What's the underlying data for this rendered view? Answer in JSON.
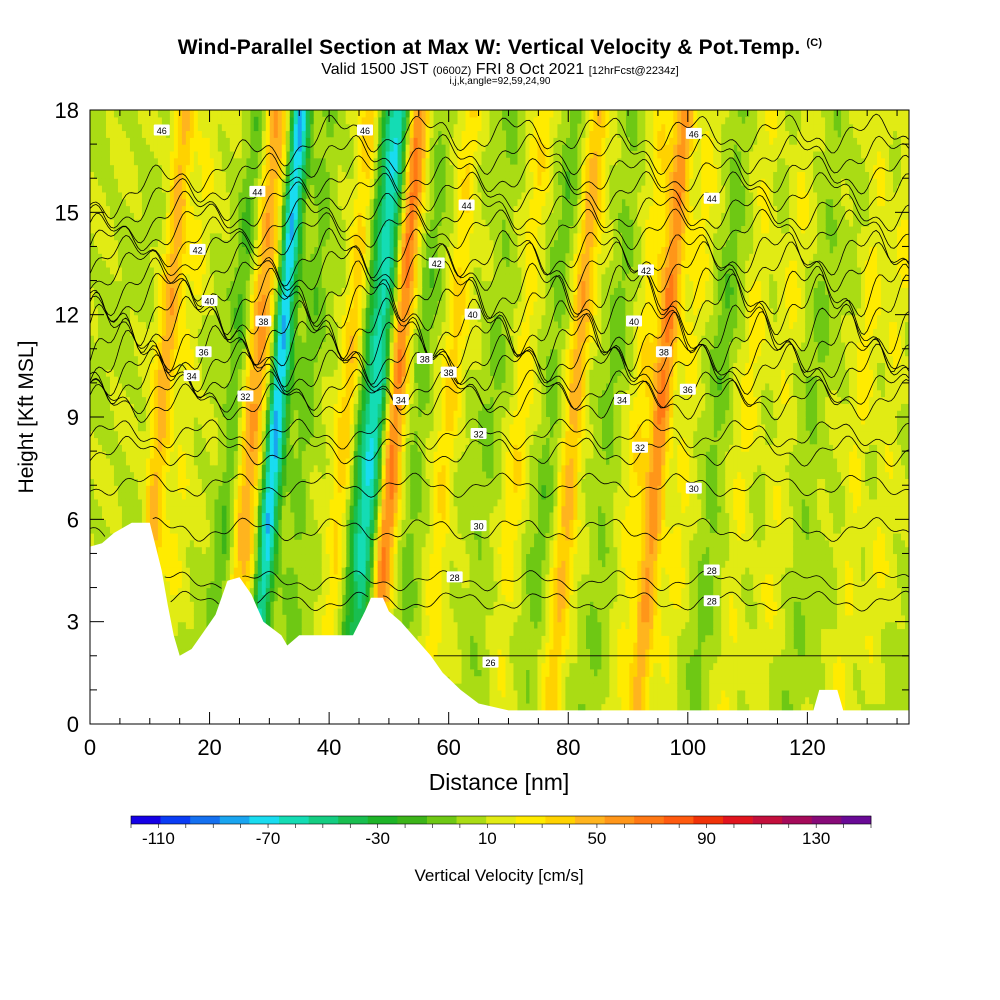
{
  "header": {
    "title": "Wind-Parallel Section at Max W: Vertical Velocity & Pot.Temp.",
    "copyright": "(C)",
    "valid_prefix": "Valid 1500 JST",
    "valid_utc": "(0600Z)",
    "valid_date": "FRI 8 Oct 2021",
    "forecast": "[12hrFcst@2234z]",
    "indices": "i,j,k,angle=92,59,24,90"
  },
  "chart_data": {
    "type": "heatmap",
    "xlabel": "Distance [nm]",
    "ylabel": "Height [Kft MSL]",
    "xlim": [
      0,
      137
    ],
    "ylim": [
      0,
      18
    ],
    "xticks": [
      0,
      20,
      40,
      60,
      80,
      100,
      120
    ],
    "yticks": [
      0,
      3,
      6,
      9,
      12,
      15,
      18
    ],
    "colorbar": {
      "label": "Vertical Velocity [cm/s]",
      "ticks": [
        -110,
        -70,
        -30,
        10,
        50,
        90,
        130
      ],
      "range": [
        -120,
        150
      ],
      "colors": [
        "#1500e6",
        "#0a3cf5",
        "#1470f0",
        "#19a5f0",
        "#19dcf0",
        "#14dcb4",
        "#14cd82",
        "#19be50",
        "#1eb428",
        "#3cb419",
        "#6ec814",
        "#aadc14",
        "#e1eb14",
        "#ffeb00",
        "#ffd200",
        "#ffb41e",
        "#ff9619",
        "#ff7814",
        "#ff5a0f",
        "#f03208",
        "#e1141e",
        "#c30f3c",
        "#a50a5a",
        "#870a78",
        "#690a96"
      ]
    },
    "velocity_features": [
      {
        "x": 12,
        "w": 40
      },
      {
        "x": 16,
        "w": 12
      },
      {
        "x": 24,
        "w": -20
      },
      {
        "x": 27,
        "w": 40
      },
      {
        "x": 29.5,
        "w": 35
      },
      {
        "x": 31,
        "w": -100
      },
      {
        "x": 36,
        "w": -15
      },
      {
        "x": 43,
        "w": 30
      },
      {
        "x": 46,
        "w": -35
      },
      {
        "x": 48,
        "w": -60
      },
      {
        "x": 51,
        "w": 60
      },
      {
        "x": 55,
        "w": -15
      },
      {
        "x": 60,
        "w": 25
      },
      {
        "x": 67,
        "w": -10
      },
      {
        "x": 72,
        "w": 20
      },
      {
        "x": 77,
        "w": -15
      },
      {
        "x": 81,
        "w": 40
      },
      {
        "x": 87,
        "w": -12
      },
      {
        "x": 92,
        "w": 20
      },
      {
        "x": 95.5,
        "w": 55
      },
      {
        "x": 100,
        "w": 15
      },
      {
        "x": 105,
        "w": -15
      },
      {
        "x": 110,
        "w": 15
      },
      {
        "x": 116,
        "w": 12
      },
      {
        "x": 121,
        "w": -10
      },
      {
        "x": 129,
        "w": 15
      },
      {
        "x": 134,
        "w": 12
      }
    ],
    "terrain": [
      {
        "x": 0,
        "z": 5.2
      },
      {
        "x": 2,
        "z": 5.3
      },
      {
        "x": 4,
        "z": 5.6
      },
      {
        "x": 7,
        "z": 5.9
      },
      {
        "x": 10,
        "z": 5.9
      },
      {
        "x": 12,
        "z": 4.5
      },
      {
        "x": 13,
        "z": 3.5
      },
      {
        "x": 14,
        "z": 2.6
      },
      {
        "x": 15,
        "z": 2.0
      },
      {
        "x": 17,
        "z": 2.2
      },
      {
        "x": 19,
        "z": 2.7
      },
      {
        "x": 21,
        "z": 3.2
      },
      {
        "x": 23,
        "z": 4.2
      },
      {
        "x": 25,
        "z": 4.3
      },
      {
        "x": 27,
        "z": 3.8
      },
      {
        "x": 29,
        "z": 3.0
      },
      {
        "x": 32,
        "z": 2.6
      },
      {
        "x": 33,
        "z": 2.3
      },
      {
        "x": 35,
        "z": 2.6
      },
      {
        "x": 40,
        "z": 2.6
      },
      {
        "x": 44,
        "z": 2.6
      },
      {
        "x": 46,
        "z": 3.3
      },
      {
        "x": 47,
        "z": 3.7
      },
      {
        "x": 49,
        "z": 3.7
      },
      {
        "x": 50,
        "z": 3.3
      },
      {
        "x": 52,
        "z": 3.0
      },
      {
        "x": 55,
        "z": 2.4
      },
      {
        "x": 57,
        "z": 2.0
      },
      {
        "x": 59,
        "z": 1.5
      },
      {
        "x": 62,
        "z": 1.0
      },
      {
        "x": 65,
        "z": 0.6
      },
      {
        "x": 70,
        "z": 0.4
      },
      {
        "x": 121,
        "z": 0.4
      },
      {
        "x": 122,
        "z": 1.0
      },
      {
        "x": 125,
        "z": 1.0
      },
      {
        "x": 126,
        "z": 0.4
      },
      {
        "x": 137,
        "z": 0.4
      }
    ],
    "theta_contours": [
      {
        "label": "26",
        "base": 2.0,
        "amp": 0.0
      },
      {
        "label": "28",
        "base": 3.6,
        "amp": 0.1
      },
      {
        "label": "28",
        "base": 4.2,
        "amp": 0.1
      },
      {
        "label": "30",
        "base": 5.7,
        "amp": 0.12
      },
      {
        "label": "30",
        "base": 7.0,
        "amp": 0.12
      },
      {
        "label": "32",
        "base": 8.0,
        "amp": 0.15
      },
      {
        "label": "32",
        "base": 8.5,
        "amp": 0.15
      },
      {
        "label": "34",
        "base": 9.5,
        "amp": 0.2
      },
      {
        "label": "34",
        "base": 9.8,
        "amp": 0.2
      },
      {
        "label": "36",
        "base": 10.4,
        "amp": 0.25
      },
      {
        "label": "36",
        "base": 10.7,
        "amp": 0.25
      },
      {
        "label": "38",
        "base": 11.2,
        "amp": 0.3
      },
      {
        "label": "38",
        "base": 11.6,
        "amp": 0.3
      },
      {
        "label": "40",
        "base": 12.3,
        "amp": 0.3
      },
      {
        "label": "40",
        "base": 12.7,
        "amp": 0.3
      },
      {
        "label": "42",
        "base": 13.4,
        "amp": 0.25
      },
      {
        "label": "42",
        "base": 13.8,
        "amp": 0.25
      },
      {
        "label": "44",
        "base": 14.5,
        "amp": 0.2
      },
      {
        "label": "44",
        "base": 15.0,
        "amp": 0.2
      },
      {
        "label": "46",
        "base": 15.6,
        "amp": 0.2
      },
      {
        "label": "46",
        "base": 16.1,
        "amp": 0.2
      },
      {
        "label": "46",
        "base": 16.7,
        "amp": 0.2
      },
      {
        "label": "46",
        "base": 17.3,
        "amp": 0.2
      }
    ],
    "contour_labels": [
      {
        "text": "46",
        "x": 12,
        "y": 17.4
      },
      {
        "text": "46",
        "x": 46,
        "y": 17.4
      },
      {
        "text": "46",
        "x": 101,
        "y": 17.3
      },
      {
        "text": "44",
        "x": 28,
        "y": 15.6
      },
      {
        "text": "44",
        "x": 63,
        "y": 15.2
      },
      {
        "text": "44",
        "x": 104,
        "y": 15.4
      },
      {
        "text": "42",
        "x": 18,
        "y": 13.9
      },
      {
        "text": "42",
        "x": 58,
        "y": 13.5
      },
      {
        "text": "42",
        "x": 93,
        "y": 13.3
      },
      {
        "text": "40",
        "x": 20,
        "y": 12.4
      },
      {
        "text": "40",
        "x": 64,
        "y": 12.0
      },
      {
        "text": "40",
        "x": 91,
        "y": 11.8
      },
      {
        "text": "38",
        "x": 29,
        "y": 11.8
      },
      {
        "text": "38",
        "x": 56,
        "y": 10.7
      },
      {
        "text": "38",
        "x": 60,
        "y": 10.3
      },
      {
        "text": "38",
        "x": 96,
        "y": 10.9
      },
      {
        "text": "36",
        "x": 19,
        "y": 10.9
      },
      {
        "text": "36",
        "x": 100,
        "y": 9.8
      },
      {
        "text": "34",
        "x": 17,
        "y": 10.2
      },
      {
        "text": "34",
        "x": 52,
        "y": 9.5
      },
      {
        "text": "34",
        "x": 89,
        "y": 9.5
      },
      {
        "text": "32",
        "x": 26,
        "y": 9.6
      },
      {
        "text": "32",
        "x": 65,
        "y": 8.5
      },
      {
        "text": "32",
        "x": 92,
        "y": 8.1
      },
      {
        "text": "30",
        "x": 101,
        "y": 6.9
      },
      {
        "text": "30",
        "x": 65,
        "y": 5.8
      },
      {
        "text": "28",
        "x": 61,
        "y": 4.3
      },
      {
        "text": "28",
        "x": 104,
        "y": 4.5
      },
      {
        "text": "28",
        "x": 104,
        "y": 3.6
      },
      {
        "text": "26",
        "x": 67,
        "y": 1.8
      }
    ]
  }
}
